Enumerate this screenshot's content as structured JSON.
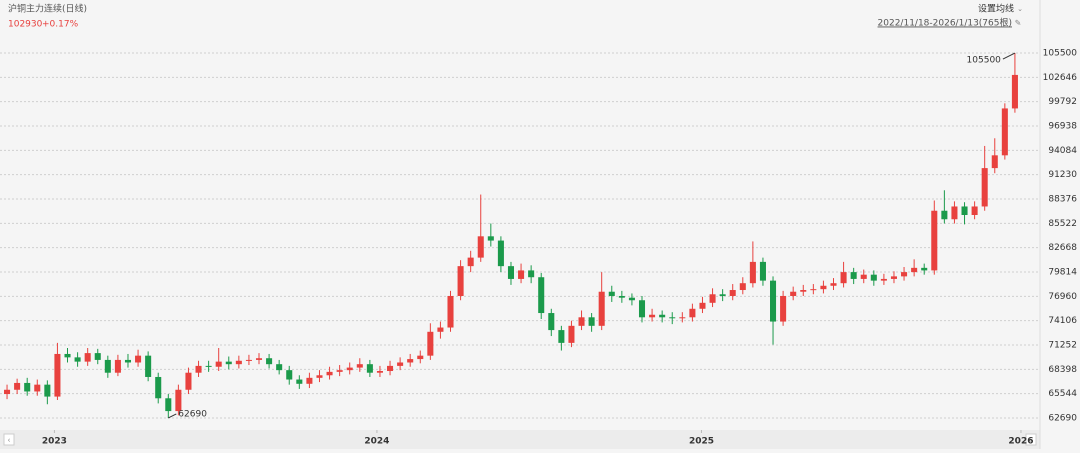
{
  "chart_data": {
    "type": "candlestick",
    "title": "沪铜主力连续(日线)",
    "change": "+0.17%",
    "ma_button": "设置均线",
    "range_label": "2022/11/18-2026/1/13(765根)",
    "up_color": "#e8413e",
    "down_color": "#1b9a4b",
    "ylim": [
      61280,
      108200
    ],
    "yticks": [
      62690,
      65544,
      68398,
      71252,
      74106,
      76960,
      79814,
      82668,
      85522,
      88376,
      91230,
      94084,
      96938,
      99792,
      102646,
      105500
    ],
    "xlim": [
      -0.5,
      101
    ],
    "xticks": [
      {
        "value": 4.7,
        "label": "2023"
      },
      {
        "value": 36.7,
        "label": "2024"
      },
      {
        "value": 68.9,
        "label": "2025"
      },
      {
        "value": 100.6,
        "label": "2026"
      }
    ],
    "grid": true,
    "ohlc": [
      [
        65500,
        66600,
        64900,
        66000
      ],
      [
        66000,
        67300,
        65500,
        66800
      ],
      [
        66800,
        67400,
        65300,
        65800
      ],
      [
        65800,
        67200,
        65300,
        66600
      ],
      [
        66600,
        67100,
        64300,
        65200
      ],
      [
        65200,
        71500,
        64800,
        70200
      ],
      [
        70200,
        70900,
        69200,
        69800
      ],
      [
        69800,
        70400,
        68700,
        69300
      ],
      [
        69300,
        70900,
        68800,
        70300
      ],
      [
        70300,
        70800,
        69000,
        69500
      ],
      [
        69500,
        70000,
        67400,
        68000
      ],
      [
        68000,
        70100,
        67600,
        69500
      ],
      [
        69500,
        70200,
        68600,
        69200
      ],
      [
        69200,
        70700,
        68700,
        70000
      ],
      [
        70000,
        70500,
        67000,
        67500
      ],
      [
        67500,
        68000,
        64400,
        65000
      ],
      [
        65000,
        65500,
        62690,
        63500
      ],
      [
        63500,
        66600,
        63000,
        66000
      ],
      [
        66000,
        68600,
        65500,
        68000
      ],
      [
        68000,
        69400,
        67500,
        68800
      ],
      [
        68800,
        69400,
        68100,
        68700
      ],
      [
        68700,
        70900,
        68200,
        69300
      ],
      [
        69300,
        69900,
        68400,
        69000
      ],
      [
        69000,
        70000,
        68500,
        69400
      ],
      [
        69400,
        70100,
        68900,
        69500
      ],
      [
        69500,
        70300,
        69000,
        69700
      ],
      [
        69700,
        70200,
        68500,
        69000
      ],
      [
        69000,
        69500,
        67800,
        68300
      ],
      [
        68300,
        68800,
        66600,
        67200
      ],
      [
        67200,
        67700,
        66100,
        66700
      ],
      [
        66700,
        68000,
        66200,
        67400
      ],
      [
        67400,
        68300,
        66900,
        67700
      ],
      [
        67700,
        68700,
        67200,
        68100
      ],
      [
        68100,
        68900,
        67600,
        68300
      ],
      [
        68300,
        69200,
        67800,
        68600
      ],
      [
        68600,
        69700,
        68100,
        69000
      ],
      [
        69000,
        69500,
        67500,
        68000
      ],
      [
        68000,
        68800,
        67500,
        68200
      ],
      [
        68200,
        69400,
        67700,
        68800
      ],
      [
        68800,
        69800,
        68300,
        69200
      ],
      [
        69200,
        70200,
        68700,
        69600
      ],
      [
        69600,
        70600,
        69100,
        70000
      ],
      [
        70000,
        73800,
        69500,
        72800
      ],
      [
        72800,
        74000,
        72000,
        73300
      ],
      [
        73300,
        77600,
        72800,
        77000
      ],
      [
        77000,
        81200,
        76500,
        80500
      ],
      [
        80500,
        82300,
        79800,
        81500
      ],
      [
        81500,
        88900,
        81000,
        84000
      ],
      [
        84000,
        85500,
        82800,
        83500
      ],
      [
        83500,
        84000,
        79800,
        80500
      ],
      [
        80500,
        81000,
        78300,
        79000
      ],
      [
        79000,
        80800,
        78500,
        80000
      ],
      [
        80000,
        80600,
        78500,
        79200
      ],
      [
        79200,
        79700,
        74300,
        75000
      ],
      [
        75000,
        75500,
        72300,
        73000
      ],
      [
        73000,
        73500,
        70600,
        71500
      ],
      [
        71500,
        74100,
        71000,
        73500
      ],
      [
        73500,
        75300,
        73000,
        74500
      ],
      [
        74500,
        75000,
        72800,
        73500
      ],
      [
        73500,
        79800,
        73000,
        77500
      ],
      [
        77500,
        78200,
        76300,
        77000
      ],
      [
        77000,
        77600,
        76200,
        76800
      ],
      [
        76800,
        77300,
        75900,
        76500
      ],
      [
        76500,
        77000,
        73900,
        74500
      ],
      [
        74500,
        75500,
        74000,
        74800
      ],
      [
        74800,
        75300,
        73900,
        74500
      ],
      [
        74500,
        75100,
        73700,
        74400
      ],
      [
        74400,
        75100,
        73900,
        74500
      ],
      [
        74500,
        76100,
        74000,
        75500
      ],
      [
        75500,
        76900,
        75000,
        76200
      ],
      [
        76200,
        77900,
        75700,
        77200
      ],
      [
        77200,
        77800,
        76400,
        77000
      ],
      [
        77000,
        78400,
        76500,
        77700
      ],
      [
        77700,
        79200,
        77200,
        78500
      ],
      [
        78500,
        83400,
        78000,
        81000
      ],
      [
        81000,
        81500,
        78200,
        78800
      ],
      [
        78800,
        79300,
        71300,
        74000
      ],
      [
        74000,
        77600,
        73500,
        77000
      ],
      [
        77000,
        78100,
        76500,
        77500
      ],
      [
        77500,
        78300,
        77000,
        77700
      ],
      [
        77700,
        78400,
        77200,
        77800
      ],
      [
        77800,
        78800,
        77300,
        78200
      ],
      [
        78200,
        79100,
        77700,
        78500
      ],
      [
        78500,
        81000,
        78000,
        79800
      ],
      [
        79800,
        80300,
        78400,
        79000
      ],
      [
        79000,
        80100,
        78500,
        79500
      ],
      [
        79500,
        80000,
        78200,
        78800
      ],
      [
        78800,
        79600,
        78300,
        79000
      ],
      [
        79000,
        79900,
        78500,
        79300
      ],
      [
        79300,
        80400,
        78800,
        79800
      ],
      [
        79800,
        81300,
        79300,
        80300
      ],
      [
        80300,
        80800,
        79500,
        80000
      ],
      [
        80000,
        88200,
        79500,
        87000
      ],
      [
        87000,
        89400,
        85500,
        86000
      ],
      [
        86000,
        88100,
        85500,
        87500
      ],
      [
        87500,
        88000,
        85400,
        86500
      ],
      [
        86500,
        88100,
        86000,
        87500
      ],
      [
        87500,
        94600,
        87000,
        92000
      ],
      [
        92000,
        95500,
        91400,
        93500
      ],
      [
        93500,
        99600,
        93000,
        99000
      ],
      [
        99000,
        105500,
        98500,
        102930
      ]
    ]
  }
}
